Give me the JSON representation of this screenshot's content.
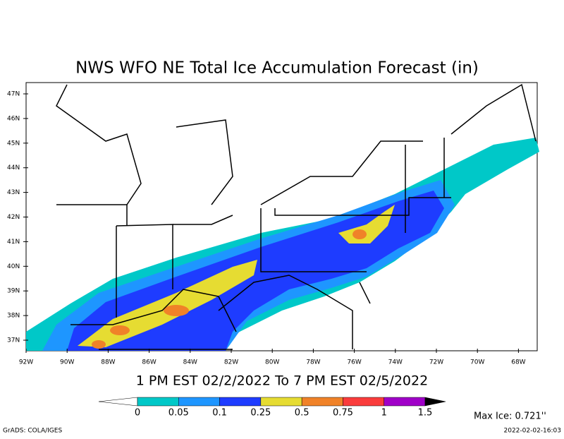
{
  "title": "NWS WFO NE Total Ice Accumulation Forecast (in)",
  "subtitle": "1 PM EST 02/2/2022 To 7 PM EST 02/5/2022",
  "lat_labels": [
    "47N",
    "46N",
    "45N",
    "44N",
    "43N",
    "42N",
    "41N",
    "40N",
    "39N",
    "38N",
    "37N"
  ],
  "lon_labels": [
    "92W",
    "90W",
    "88W",
    "86W",
    "84W",
    "82W",
    "80W",
    "78W",
    "76W",
    "74W",
    "72W",
    "70W",
    "68W"
  ],
  "legend": {
    "labels": [
      0,
      0.05,
      0.1,
      0.25,
      0.5,
      0.75,
      1,
      1.5
    ],
    "colors": [
      "#ffffff",
      "#00c8c8",
      "#1e96ff",
      "#1e3cff",
      "#e6dc32",
      "#f08228",
      "#fa3c3c",
      "#a000c8",
      "#000000"
    ]
  },
  "max_ice": "Max Ice: 0.721''",
  "credit": "GrADS: COLA/IGES",
  "timestamp": "2022-02-02-16:03"
}
